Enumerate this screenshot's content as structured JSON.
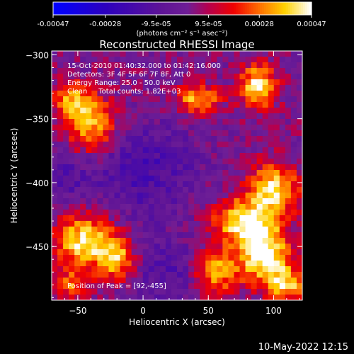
{
  "chart_data": {
    "type": "heatmap",
    "title": "Reconstructed RHESSI Image",
    "xlabel": "Heliocentric X (arcsec)",
    "ylabel": "Heliocentric Y (arcsec)",
    "xlim": [
      -70,
      122
    ],
    "ylim": [
      -492,
      -297
    ],
    "x_ticks": [
      -50,
      0,
      50,
      100
    ],
    "y_ticks": [
      -300,
      -350,
      -400,
      -450
    ],
    "colorbar": {
      "colormap": "hot-with-blue-negative",
      "range": [
        -0.00047,
        0.00047
      ],
      "tick_values": [
        -0.00047,
        -0.00028,
        -9.5e-05,
        9.5e-05,
        0.00028,
        0.00047
      ],
      "tick_labels": [
        "-0.00047",
        "-0.00028",
        "-9.5e-05",
        "9.5e-05",
        "0.00028",
        "0.00047"
      ],
      "unit_label": "(photons cm⁻² s⁻¹ asec⁻²)"
    },
    "info_lines": [
      "15-Oct-2010 01:40:32.000 to 01:42:16.000",
      "Detectors: 3F 4F 5F 6F 7F 8F, Att 0",
      "Energy Range: 25.0 - 50.0 keV",
      "Clean     Total counts: 1.82E+03"
    ],
    "peak_label": "Position of Peak = [92,-455]",
    "peak": [
      92,
      -455
    ],
    "blobs": [
      {
        "x": 88,
        "y": -325,
        "amp": 0.00042,
        "sx": 10,
        "sy": 12
      },
      {
        "x": 42,
        "y": -335,
        "amp": 0.00034,
        "sx": 12,
        "sy": 8
      },
      {
        "x": -40,
        "y": -355,
        "amp": 0.00036,
        "sx": 14,
        "sy": 16
      },
      {
        "x": -55,
        "y": -335,
        "amp": 0.00026,
        "sx": 10,
        "sy": 10
      },
      {
        "x": 100,
        "y": -405,
        "amp": 0.0004,
        "sx": 14,
        "sy": 14
      },
      {
        "x": 75,
        "y": -430,
        "amp": 0.00038,
        "sx": 16,
        "sy": 12
      },
      {
        "x": 92,
        "y": -455,
        "amp": 0.00047,
        "sx": 14,
        "sy": 16
      },
      {
        "x": 55,
        "y": -470,
        "amp": 0.00036,
        "sx": 12,
        "sy": 12
      },
      {
        "x": 110,
        "y": -480,
        "amp": 0.00034,
        "sx": 10,
        "sy": 10
      },
      {
        "x": -45,
        "y": -445,
        "amp": 0.00042,
        "sx": 16,
        "sy": 14
      },
      {
        "x": -20,
        "y": -460,
        "amp": 0.00034,
        "sx": 10,
        "sy": 12
      },
      {
        "x": -55,
        "y": -480,
        "amp": 0.00026,
        "sx": 10,
        "sy": 8
      }
    ],
    "dips": [
      {
        "x": 0,
        "y": -390,
        "amp": -0.00018,
        "sx": 30,
        "sy": 26
      },
      {
        "x": 20,
        "y": -470,
        "amp": -0.00014,
        "sx": 22,
        "sy": 18
      },
      {
        "x": -60,
        "y": -395,
        "amp": -0.00012,
        "sx": 12,
        "sy": 14
      }
    ]
  },
  "timestamp": "10-May-2022 12:15"
}
